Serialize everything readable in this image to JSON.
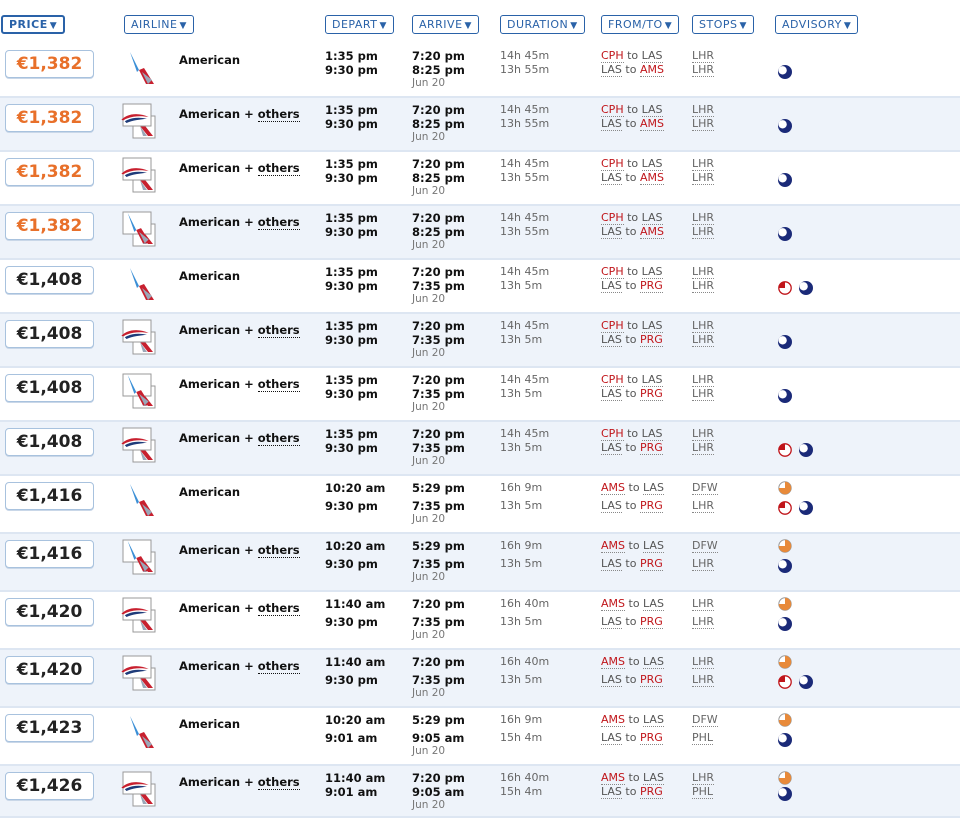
{
  "header": {
    "price": "PRICE",
    "airline": "AIRLINE",
    "depart": "DEPART",
    "arrive": "ARRIVE",
    "duration": "DURATION",
    "fromto": "FROM/TO",
    "stops": "STOPS",
    "advisory": "ADVISORY",
    "caret": "▼"
  },
  "sep_word": "to",
  "plus": "+",
  "colors": {
    "accent": "#2a62a8",
    "price_orange": "#e8702a",
    "airport_red": "#c0151a",
    "row_alt": "#eef3fa"
  },
  "rows": [
    {
      "price": "€1,382",
      "price_style": "orange",
      "logo": "aa",
      "airline": "American",
      "others": "",
      "d1": "1:35 pm",
      "d2": "9:30 pm",
      "a1": "7:20 pm",
      "a2": "8:25 pm",
      "a2date": "Jun 20",
      "dur1": "14h 45m",
      "dur2": "13h 55m",
      "f1": "CPH",
      "t1": "LAS",
      "f2": "LAS",
      "t2": "AMS",
      "s1": "LHR",
      "s2": "LHR",
      "adv1": [],
      "adv2": [
        "moon"
      ]
    },
    {
      "price": "€1,382",
      "price_style": "orange",
      "logo": "ba_multi",
      "airline": "American",
      "others": "others",
      "d1": "1:35 pm",
      "d2": "9:30 pm",
      "a1": "7:20 pm",
      "a2": "8:25 pm",
      "a2date": "Jun 20",
      "dur1": "14h 45m",
      "dur2": "13h 55m",
      "f1": "CPH",
      "t1": "LAS",
      "f2": "LAS",
      "t2": "AMS",
      "s1": "LHR",
      "s2": "LHR",
      "adv1": [],
      "adv2": [
        "moon"
      ]
    },
    {
      "price": "€1,382",
      "price_style": "orange",
      "logo": "ba_multi",
      "airline": "American",
      "others": "others",
      "d1": "1:35 pm",
      "d2": "9:30 pm",
      "a1": "7:20 pm",
      "a2": "8:25 pm",
      "a2date": "Jun 20",
      "dur1": "14h 45m",
      "dur2": "13h 55m",
      "f1": "CPH",
      "t1": "LAS",
      "f2": "LAS",
      "t2": "AMS",
      "s1": "LHR",
      "s2": "LHR",
      "adv1": [],
      "adv2": [
        "moon"
      ]
    },
    {
      "price": "€1,382",
      "price_style": "orange",
      "logo": "aa_multi",
      "airline": "American",
      "others": "others",
      "d1": "1:35 pm",
      "d2": "9:30 pm",
      "a1": "7:20 pm",
      "a2": "8:25 pm",
      "a2date": "Jun 20",
      "dur1": "14h 45m",
      "dur2": "13h 55m",
      "f1": "CPH",
      "t1": "LAS",
      "f2": "LAS",
      "t2": "AMS",
      "s1": "LHR",
      "s2": "LHR",
      "adv1": [],
      "adv2": [
        "moon"
      ]
    },
    {
      "price": "€1,408",
      "price_style": "black",
      "logo": "aa",
      "airline": "American",
      "others": "",
      "d1": "1:35 pm",
      "d2": "9:30 pm",
      "a1": "7:20 pm",
      "a2": "7:35 pm",
      "a2date": "Jun 20",
      "dur1": "14h 45m",
      "dur2": "13h 5m",
      "f1": "CPH",
      "t1": "LAS",
      "f2": "LAS",
      "t2": "PRG",
      "s1": "LHR",
      "s2": "LHR",
      "adv1": [],
      "adv2": [
        "red",
        "moon"
      ]
    },
    {
      "price": "€1,408",
      "price_style": "black",
      "logo": "ba_multi",
      "airline": "American",
      "others": "others",
      "d1": "1:35 pm",
      "d2": "9:30 pm",
      "a1": "7:20 pm",
      "a2": "7:35 pm",
      "a2date": "Jun 20",
      "dur1": "14h 45m",
      "dur2": "13h 5m",
      "f1": "CPH",
      "t1": "LAS",
      "f2": "LAS",
      "t2": "PRG",
      "s1": "LHR",
      "s2": "LHR",
      "adv1": [],
      "adv2": [
        "moon"
      ]
    },
    {
      "price": "€1,408",
      "price_style": "black",
      "logo": "aa_multi",
      "airline": "American",
      "others": "others",
      "d1": "1:35 pm",
      "d2": "9:30 pm",
      "a1": "7:20 pm",
      "a2": "7:35 pm",
      "a2date": "Jun 20",
      "dur1": "14h 45m",
      "dur2": "13h 5m",
      "f1": "CPH",
      "t1": "LAS",
      "f2": "LAS",
      "t2": "PRG",
      "s1": "LHR",
      "s2": "LHR",
      "adv1": [],
      "adv2": [
        "moon"
      ]
    },
    {
      "price": "€1,408",
      "price_style": "black",
      "logo": "ba_multi",
      "airline": "American",
      "others": "others",
      "d1": "1:35 pm",
      "d2": "9:30 pm",
      "a1": "7:20 pm",
      "a2": "7:35 pm",
      "a2date": "Jun 20",
      "dur1": "14h 45m",
      "dur2": "13h 5m",
      "f1": "CPH",
      "t1": "LAS",
      "f2": "LAS",
      "t2": "PRG",
      "s1": "LHR",
      "s2": "LHR",
      "adv1": [],
      "adv2": [
        "red",
        "moon"
      ]
    },
    {
      "price": "€1,416",
      "price_style": "black",
      "logo": "aa",
      "airline": "American",
      "others": "",
      "d1": "10:20 am",
      "d2": "9:30 pm",
      "a1": "5:29 pm",
      "a2": "7:35 pm",
      "a2date": "Jun 20",
      "dur1": "16h 9m",
      "dur2": "13h 5m",
      "f1": "AMS",
      "t1": "LAS",
      "f2": "LAS",
      "t2": "PRG",
      "s1": "DFW",
      "s2": "LHR",
      "adv1": [
        "orange"
      ],
      "adv2": [
        "red",
        "moon"
      ]
    },
    {
      "price": "€1,416",
      "price_style": "black",
      "logo": "aa_multi",
      "airline": "American",
      "others": "others",
      "d1": "10:20 am",
      "d2": "9:30 pm",
      "a1": "5:29 pm",
      "a2": "7:35 pm",
      "a2date": "Jun 20",
      "dur1": "16h 9m",
      "dur2": "13h 5m",
      "f1": "AMS",
      "t1": "LAS",
      "f2": "LAS",
      "t2": "PRG",
      "s1": "DFW",
      "s2": "LHR",
      "adv1": [
        "orange"
      ],
      "adv2": [
        "moon"
      ]
    },
    {
      "price": "€1,420",
      "price_style": "black",
      "logo": "ba_multi",
      "airline": "American",
      "others": "others",
      "d1": "11:40 am",
      "d2": "9:30 pm",
      "a1": "7:20 pm",
      "a2": "7:35 pm",
      "a2date": "Jun 20",
      "dur1": "16h 40m",
      "dur2": "13h 5m",
      "f1": "AMS",
      "t1": "LAS",
      "f2": "LAS",
      "t2": "PRG",
      "s1": "LHR",
      "s2": "LHR",
      "adv1": [
        "orange"
      ],
      "adv2": [
        "moon"
      ]
    },
    {
      "price": "€1,420",
      "price_style": "black",
      "logo": "ba_multi",
      "airline": "American",
      "others": "others",
      "d1": "11:40 am",
      "d2": "9:30 pm",
      "a1": "7:20 pm",
      "a2": "7:35 pm",
      "a2date": "Jun 20",
      "dur1": "16h 40m",
      "dur2": "13h 5m",
      "f1": "AMS",
      "t1": "LAS",
      "f2": "LAS",
      "t2": "PRG",
      "s1": "LHR",
      "s2": "LHR",
      "adv1": [
        "orange"
      ],
      "adv2": [
        "red",
        "moon"
      ]
    },
    {
      "price": "€1,423",
      "price_style": "black",
      "logo": "aa",
      "airline": "American",
      "others": "",
      "d1": "10:20 am",
      "d2": "9:01 am",
      "a1": "5:29 pm",
      "a2": "9:05 am",
      "a2date": "Jun 20",
      "dur1": "16h 9m",
      "dur2": "15h 4m",
      "f1": "AMS",
      "t1": "LAS",
      "f2": "LAS",
      "t2": "PRG",
      "s1": "DFW",
      "s2": "PHL",
      "adv1": [
        "orange"
      ],
      "adv2": [
        "moon"
      ]
    },
    {
      "price": "€1,426",
      "price_style": "black",
      "logo": "ba_multi",
      "airline": "American",
      "others": "others",
      "d1": "11:40 am",
      "d2": "9:01 am",
      "a1": "7:20 pm",
      "a2": "9:05 am",
      "a2date": "Jun 20",
      "dur1": "16h 40m",
      "dur2": "15h 4m",
      "f1": "AMS",
      "t1": "LAS",
      "f2": "LAS",
      "t2": "PRG",
      "s1": "LHR",
      "s2": "PHL",
      "adv1": [
        "orange"
      ],
      "adv2": [
        "moon"
      ]
    }
  ]
}
